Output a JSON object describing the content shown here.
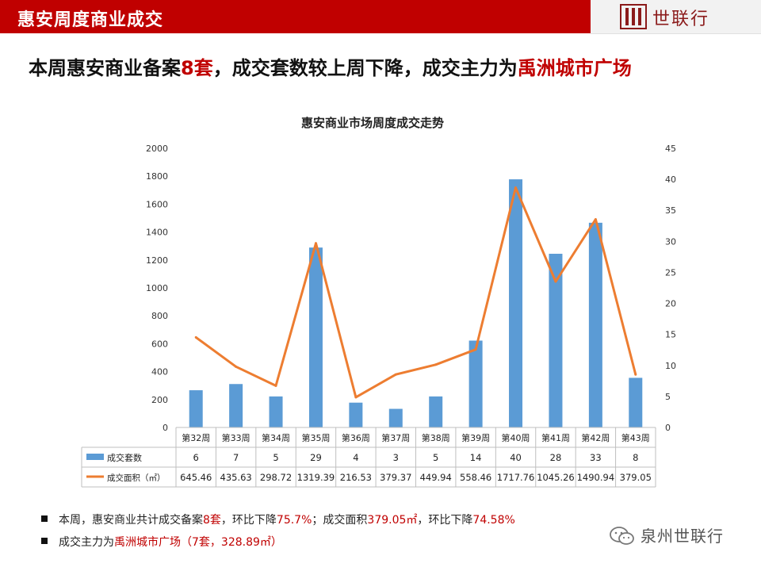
{
  "header": {
    "title": "惠安周度商业成交",
    "logo_text": "世联行"
  },
  "headline": {
    "part1": "本周惠安商业备案",
    "count": "8套",
    "part2": "，成交套数较上周下降，成交主力为",
    "project": "禹洲城市广场"
  },
  "chart_data": {
    "type": "bar+line",
    "title": "惠安商业市场周度成交走势",
    "categories": [
      "第32周",
      "第33周",
      "第34周",
      "第35周",
      "第36周",
      "第37周",
      "第38周",
      "第39周",
      "第40周",
      "第41周",
      "第42周",
      "第43周"
    ],
    "series": [
      {
        "name": "成交套数",
        "type": "bar",
        "axis": "right",
        "color": "#5b9bd5",
        "values": [
          6,
          7,
          5,
          29,
          4,
          3,
          5,
          14,
          40,
          28,
          33,
          8
        ]
      },
      {
        "name": "成交面积（㎡）",
        "type": "line",
        "axis": "left",
        "color": "#ed7d31",
        "values": [
          645.46,
          435.63,
          298.72,
          1319.39,
          216.53,
          379.37,
          449.94,
          558.46,
          1717.76,
          1045.26,
          1490.94,
          379.05
        ]
      }
    ],
    "table_rows": [
      [
        "6",
        "7",
        "5",
        "29",
        "4",
        "3",
        "5",
        "14",
        "40",
        "28",
        "33",
        "8"
      ],
      [
        "645.46",
        "435.63",
        "298.72",
        "1319.39",
        "216.53",
        "379.37",
        "449.94",
        "558.46",
        "1717.76",
        "1045.26",
        "1490.94",
        "379.05"
      ]
    ],
    "left_axis": {
      "min": 0,
      "max": 2000,
      "ticks": [
        "0",
        "200",
        "400",
        "600",
        "800",
        "1000",
        "1200",
        "1400",
        "1600",
        "1800",
        "2000"
      ]
    },
    "right_axis": {
      "min": 0,
      "max": 45,
      "ticks": [
        "0",
        "5",
        "10",
        "15",
        "20",
        "25",
        "30",
        "35",
        "40",
        "45"
      ]
    }
  },
  "notes": {
    "line1_a": "本周，惠安商业共计成交备案",
    "line1_b": "8套",
    "line1_c": "，环比下降",
    "line1_d": "75.7%",
    "line1_e": "；成交面积",
    "line1_f": "379.05㎡",
    "line1_g": "，环比下降",
    "line1_h": "74.58%",
    "line2_a": "成交主力为",
    "line2_b": "禹洲城市广场（7套，328.89㎡）"
  },
  "watermark": {
    "text": "泉州世联行",
    "icon": "wechat-icon"
  },
  "colors": {
    "header_red": "#c00000",
    "bar_blue": "#5b9bd5",
    "line_orange": "#ed7d31"
  }
}
